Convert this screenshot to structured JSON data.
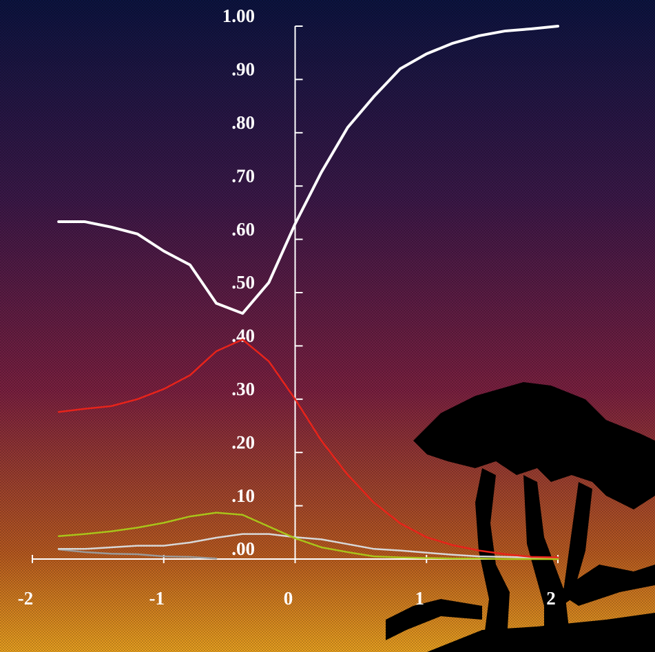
{
  "chart_data": {
    "type": "line",
    "x": [
      -1.8,
      -1.6,
      -1.4,
      -1.2,
      -1.0,
      -0.8,
      -0.6,
      -0.4,
      -0.2,
      0,
      0.2,
      0.4,
      0.6,
      0.8,
      1.0,
      1.2,
      1.4,
      1.6,
      1.8,
      2.0
    ],
    "series": [
      {
        "color": "#ffffff",
        "width": 4,
        "values": [
          0.633,
          0.633,
          0.623,
          0.61,
          0.578,
          0.552,
          0.48,
          0.461,
          0.519,
          0.629,
          0.726,
          0.81,
          0.868,
          0.92,
          0.948,
          0.968,
          0.982,
          0.991,
          0.995,
          1.0
        ]
      },
      {
        "color": "#e8231a",
        "width": 2.5,
        "values": [
          0.276,
          0.282,
          0.287,
          0.3,
          0.319,
          0.345,
          0.39,
          0.412,
          0.371,
          0.3,
          0.222,
          0.158,
          0.106,
          0.067,
          0.041,
          0.026,
          0.016,
          0.009,
          0.004,
          0.003
        ]
      },
      {
        "color": "#a8c41a",
        "width": 2.5,
        "values": [
          0.043,
          0.047,
          0.052,
          0.059,
          0.068,
          0.08,
          0.087,
          0.083,
          0.061,
          0.039,
          0.022,
          0.013,
          0.005,
          0.003,
          0.002,
          0.001,
          0.001,
          0.0,
          0.0,
          0.0
        ]
      },
      {
        "color": "#d8d8d8",
        "width": 2.5,
        "values": [
          0.019,
          0.019,
          0.022,
          0.025,
          0.025,
          0.031,
          0.04,
          0.047,
          0.047,
          0.041,
          0.037,
          0.028,
          0.019,
          0.016,
          0.012,
          0.008,
          0.005,
          0.004,
          0.003,
          0.001
        ]
      },
      {
        "color": "#9a9a9a",
        "width": 2.5,
        "values": [
          0.018,
          0.013,
          0.01,
          0.009,
          0.005,
          0.004,
          0.001,
          null,
          null,
          null,
          null,
          null,
          null,
          null,
          null,
          null,
          null,
          null,
          null,
          null
        ]
      }
    ],
    "xlim": [
      -2,
      2
    ],
    "ylim": [
      0,
      1
    ],
    "xticks": [
      -2,
      -1,
      0,
      1,
      2
    ],
    "yticks": [
      {
        "value": 0,
        "label": ".00"
      },
      {
        "value": 0.1,
        "label": ".10"
      },
      {
        "value": 0.2,
        "label": ".20"
      },
      {
        "value": 0.3,
        "label": ".30"
      },
      {
        "value": 0.4,
        "label": ".40"
      },
      {
        "value": 0.5,
        "label": ".50"
      },
      {
        "value": 0.6,
        "label": ".60"
      },
      {
        "value": 0.7,
        "label": ".70"
      },
      {
        "value": 0.8,
        "label": ".80"
      },
      {
        "value": 0.9,
        "label": ".90"
      },
      {
        "value": 1.0,
        "label": "1.00"
      }
    ]
  }
}
